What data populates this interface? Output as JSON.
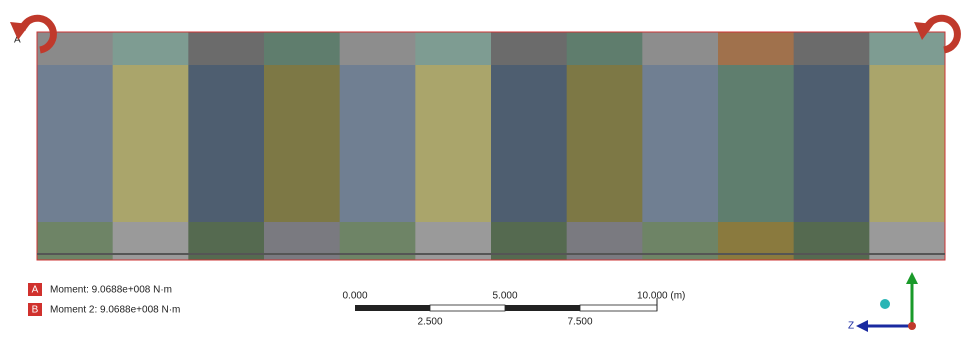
{
  "model": {
    "corner_label": "A"
  },
  "legend": {
    "items": [
      {
        "key": "A",
        "text": "Moment: 9.0688e+008 N·m"
      },
      {
        "key": "B",
        "text": "Moment 2: 9.0688e+008 N·m"
      }
    ]
  },
  "scale_bar": {
    "top_labels": [
      "0.000",
      "5.000",
      "10.000 (m)"
    ],
    "bottom_labels": [
      "2.500",
      "7.500"
    ]
  },
  "triad": {
    "z_label": "Z"
  }
}
